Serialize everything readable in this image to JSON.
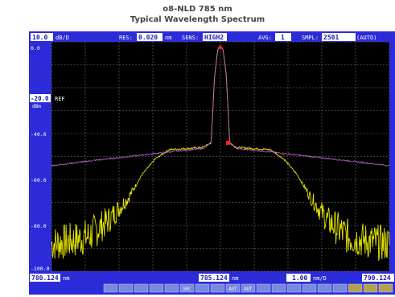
{
  "header": {
    "title": "o8-NLD 785 nm",
    "subtitle": "Typical Wavelength Spectrum"
  },
  "colors": {
    "frame": "#2b2bd9",
    "screen": "#000000",
    "grid": "#7a7a7a",
    "label": "#ffffff",
    "value_bg": "#ffffff",
    "value_text": "#1a1ab0",
    "trace_wide": "#e0e000",
    "trace_narrow": "#c060d0",
    "marker": "#ff2020"
  },
  "status_bar": {
    "scale_value": "10.0",
    "scale_unit": "dB/D",
    "res_label": "RES:",
    "res_value": "0.020",
    "res_unit": "nm",
    "sens_label": "SENS:",
    "sens_value": "HIGH2",
    "avg_label": "AVG:",
    "avg_value": "1",
    "smpl_label": "SMPL:",
    "smpl_value": "2501",
    "smpl_mode": "(AUTO)"
  },
  "ref": {
    "value": "-20.0",
    "label": "REF",
    "unit": "dBm"
  },
  "bottom_bar": {
    "start_value": "780.124",
    "start_unit": "nm",
    "center_value": "785.124",
    "center_unit": "nm",
    "span_value": "1.00",
    "span_unit": "nm/D",
    "stop_value": "790.124"
  },
  "softkeys": [
    "",
    "",
    "",
    "",
    "",
    "SRC",
    "",
    "",
    "AUT",
    "AUT",
    "",
    "",
    "",
    "",
    "",
    "",
    "",
    "",
    ""
  ],
  "chart_data": {
    "type": "line",
    "xlim": [
      780.124,
      790.124
    ],
    "ylim": [
      -100,
      0
    ],
    "y_ticks": [
      "0.0",
      "-20.0",
      "-40.0",
      "-60.0",
      "-80.0",
      "-100.0"
    ],
    "y_tick_values": [
      0,
      -20,
      -40,
      -60,
      -80,
      -100
    ],
    "grid": true,
    "series": [
      {
        "x": [
          780.124,
          780.6,
          781.2,
          781.8,
          782.4,
          782.8,
          783.2,
          783.6,
          784.1,
          784.6,
          784.85,
          784.95,
          785.05,
          785.124,
          785.2,
          785.3,
          785.4,
          785.6,
          786.1,
          786.6,
          787.0,
          787.4,
          787.8,
          788.3,
          788.9,
          789.5,
          790.124
        ],
        "y": [
          -88,
          -87,
          -85,
          -78,
          -68,
          -58,
          -51,
          -47,
          -46.5,
          -46,
          -44,
          -15,
          -3,
          -2,
          -3,
          -15,
          -44,
          -46,
          -46.5,
          -47,
          -51,
          -58,
          -68,
          -78,
          -85,
          -87,
          -88
        ]
      },
      {
        "x": [
          780.124,
          781.2,
          782.4,
          783.6,
          784.6,
          784.85,
          784.95,
          785.05,
          785.124,
          785.2,
          785.3,
          785.4,
          785.6,
          786.6,
          787.8,
          789.0,
          790.124
        ],
        "y": [
          -54,
          -52,
          -50,
          -48,
          -46.5,
          -44,
          -15,
          -3,
          -2,
          -3,
          -15,
          -44,
          -46.5,
          -48,
          -50,
          -52,
          -54
        ]
      }
    ],
    "markers": [
      {
        "x": 785.124,
        "y": -2
      },
      {
        "x": 785.35,
        "y": -44
      }
    ]
  }
}
